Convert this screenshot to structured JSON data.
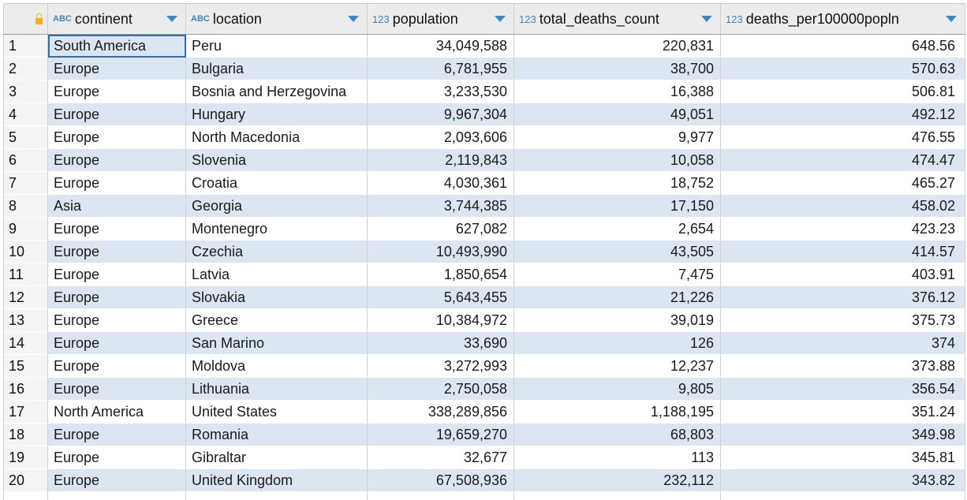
{
  "columns": {
    "continent": {
      "type": "ABC",
      "label": "continent"
    },
    "location": {
      "type": "ABC",
      "label": "location"
    },
    "population": {
      "type": "123",
      "label": "population"
    },
    "total_deaths_count": {
      "type": "123",
      "label": "total_deaths_count"
    },
    "deaths_per100000popln": {
      "type": "123",
      "label": "deaths_per100000popln"
    }
  },
  "icons": {
    "lock": "lock-icon",
    "sort": "sort-desc-arrow-icon"
  },
  "colors": {
    "accent": "#3a86c8",
    "stripe": "#dce6f2",
    "lock": "#f0b51a",
    "selection": "#2f6fb2"
  },
  "rows": [
    {
      "n": "1",
      "continent": "South America",
      "location": "Peru",
      "population": "34,049,588",
      "total_deaths_count": "220,831",
      "deaths_per100000popln": "648.56"
    },
    {
      "n": "2",
      "continent": "Europe",
      "location": "Bulgaria",
      "population": "6,781,955",
      "total_deaths_count": "38,700",
      "deaths_per100000popln": "570.63"
    },
    {
      "n": "3",
      "continent": "Europe",
      "location": "Bosnia and Herzegovina",
      "population": "3,233,530",
      "total_deaths_count": "16,388",
      "deaths_per100000popln": "506.81"
    },
    {
      "n": "4",
      "continent": "Europe",
      "location": "Hungary",
      "population": "9,967,304",
      "total_deaths_count": "49,051",
      "deaths_per100000popln": "492.12"
    },
    {
      "n": "5",
      "continent": "Europe",
      "location": "North Macedonia",
      "population": "2,093,606",
      "total_deaths_count": "9,977",
      "deaths_per100000popln": "476.55"
    },
    {
      "n": "6",
      "continent": "Europe",
      "location": "Slovenia",
      "population": "2,119,843",
      "total_deaths_count": "10,058",
      "deaths_per100000popln": "474.47"
    },
    {
      "n": "7",
      "continent": "Europe",
      "location": "Croatia",
      "population": "4,030,361",
      "total_deaths_count": "18,752",
      "deaths_per100000popln": "465.27"
    },
    {
      "n": "8",
      "continent": "Asia",
      "location": "Georgia",
      "population": "3,744,385",
      "total_deaths_count": "17,150",
      "deaths_per100000popln": "458.02"
    },
    {
      "n": "9",
      "continent": "Europe",
      "location": "Montenegro",
      "population": "627,082",
      "total_deaths_count": "2,654",
      "deaths_per100000popln": "423.23"
    },
    {
      "n": "10",
      "continent": "Europe",
      "location": "Czechia",
      "population": "10,493,990",
      "total_deaths_count": "43,505",
      "deaths_per100000popln": "414.57"
    },
    {
      "n": "11",
      "continent": "Europe",
      "location": "Latvia",
      "population": "1,850,654",
      "total_deaths_count": "7,475",
      "deaths_per100000popln": "403.91"
    },
    {
      "n": "12",
      "continent": "Europe",
      "location": "Slovakia",
      "population": "5,643,455",
      "total_deaths_count": "21,226",
      "deaths_per100000popln": "376.12"
    },
    {
      "n": "13",
      "continent": "Europe",
      "location": "Greece",
      "population": "10,384,972",
      "total_deaths_count": "39,019",
      "deaths_per100000popln": "375.73"
    },
    {
      "n": "14",
      "continent": "Europe",
      "location": "San Marino",
      "population": "33,690",
      "total_deaths_count": "126",
      "deaths_per100000popln": "374"
    },
    {
      "n": "15",
      "continent": "Europe",
      "location": "Moldova",
      "population": "3,272,993",
      "total_deaths_count": "12,237",
      "deaths_per100000popln": "373.88"
    },
    {
      "n": "16",
      "continent": "Europe",
      "location": "Lithuania",
      "population": "2,750,058",
      "total_deaths_count": "9,805",
      "deaths_per100000popln": "356.54"
    },
    {
      "n": "17",
      "continent": "North America",
      "location": "United States",
      "population": "338,289,856",
      "total_deaths_count": "1,188,195",
      "deaths_per100000popln": "351.24"
    },
    {
      "n": "18",
      "continent": "Europe",
      "location": "Romania",
      "population": "19,659,270",
      "total_deaths_count": "68,803",
      "deaths_per100000popln": "349.98"
    },
    {
      "n": "19",
      "continent": "Europe",
      "location": "Gibraltar",
      "population": "32,677",
      "total_deaths_count": "113",
      "deaths_per100000popln": "345.81"
    },
    {
      "n": "20",
      "continent": "Europe",
      "location": "United Kingdom",
      "population": "67,508,936",
      "total_deaths_count": "232,112",
      "deaths_per100000popln": "343.82"
    }
  ]
}
